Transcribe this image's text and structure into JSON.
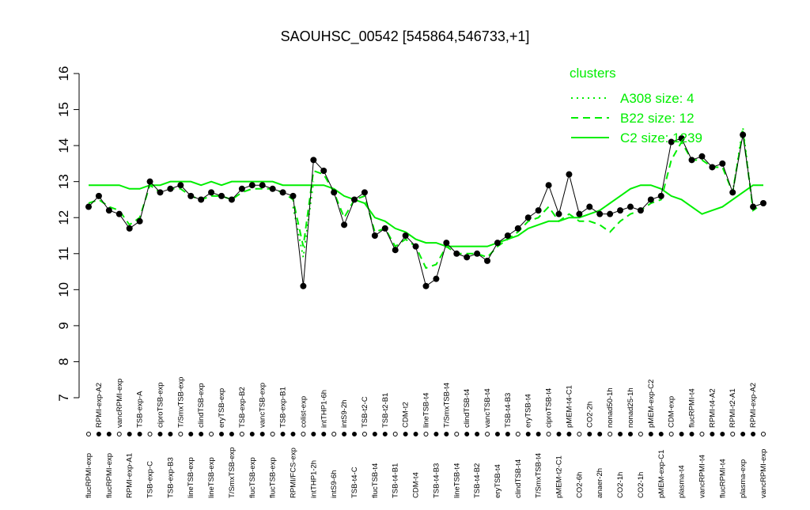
{
  "chart_data": {
    "type": "line",
    "title": "SAOUHSC_00542 [545864,546733,+1]",
    "categories": [
      "flucRPMI-exp",
      "RPMI-exp-A2",
      "flucRPMI-exp",
      "vancRPMI-exp",
      "RPMI-exp-A1",
      "TSB-exp-A",
      "TSB-exp-C",
      "ciproTSB-exp",
      "TSB-exp-B3",
      "T/SmxTSB-exp",
      "lineTSB-exp",
      "clindTSB-exp",
      "lineTSB-exp",
      "eryTSB-exp",
      "T/SmxTSB-exp",
      "TSB-exp-B2",
      "flucTSB-exp",
      "vancTSB-exp",
      "flucTSB-exp",
      "TSB-exp-B1",
      "RPMI/FCS-exp",
      "colist-exp",
      "intTHP1-2h",
      "intTHP1-6h",
      "intS9-6h",
      "intS9-2h",
      "TSB-t4-C",
      "TSB-t2-C",
      "flucTSB-t4",
      "TSB-t2-B1",
      "TSB-t4-B1",
      "CDM-t2",
      "CDM-t4",
      "lineTSB-t4",
      "TSB-t4-B3",
      "T/SmxTSB-t4",
      "lineTSB-t4",
      "clindTSB-t4",
      "TSB-t4-B2",
      "vancTSB-t4",
      "eryTSB-t4",
      "TSB-t4-B3",
      "clindTSB-t4",
      "eryTSB-t4",
      "T/SmxTSB-t4",
      "ciproTSB-t4",
      "pMEM-t2-C1",
      "pMEM-t4-C1",
      "CO2-6h",
      "CO2-2h",
      "anaer-2h",
      "nonad50-1h",
      "CO2-1h",
      "nonad25-1h",
      "CO2-1h",
      "pMEM-exp-C2",
      "pMEM-exp-C1",
      "CDM-exp",
      "plasma-t4",
      "flucRPMI-t4",
      "vancRPMI-t4",
      "RPMI-t4-A2",
      "flucRPMI-t4",
      "RPMI-t2-A1",
      "plasma-exp",
      "RPMI-exp-A2",
      "vancRPMI-exp"
    ],
    "values": [
      12.3,
      12.6,
      12.2,
      12.1,
      11.7,
      11.9,
      13.0,
      12.7,
      12.8,
      12.9,
      12.6,
      12.5,
      12.7,
      12.6,
      12.5,
      12.8,
      12.9,
      12.9,
      12.8,
      12.7,
      12.6,
      10.1,
      13.6,
      13.3,
      12.7,
      11.8,
      12.5,
      12.7,
      11.5,
      11.7,
      11.1,
      11.5,
      11.2,
      10.1,
      10.3,
      11.3,
      11.0,
      10.9,
      11.0,
      10.8,
      11.3,
      11.5,
      11.7,
      12.0,
      12.2,
      12.9,
      12.1,
      13.2,
      12.1,
      12.3,
      12.1,
      12.1,
      12.2,
      12.3,
      12.2,
      12.5,
      12.6,
      14.1,
      14.2,
      13.6,
      13.7,
      13.4,
      13.5,
      12.7,
      14.3,
      12.3,
      12.4
    ],
    "series": [
      {
        "name": "A308 size: 4",
        "color": "#00ee00",
        "style": "dotted",
        "values": [
          null,
          null,
          null,
          null,
          null,
          null,
          null,
          null,
          null,
          null,
          null,
          null,
          null,
          null,
          null,
          null,
          null,
          null,
          null,
          null,
          12.3,
          10.9,
          13.0,
          null,
          null,
          null,
          null,
          null,
          null,
          null,
          null,
          null,
          null,
          null,
          null,
          null,
          null,
          null,
          null,
          null,
          null,
          null,
          null,
          null,
          null,
          null,
          null,
          null,
          null,
          null,
          null,
          null,
          null,
          null,
          null,
          null,
          null,
          null,
          null,
          null,
          null,
          null,
          null,
          12.7,
          14.5,
          12.2,
          null
        ]
      },
      {
        "name": "B22 size: 12",
        "color": "#00ee00",
        "style": "dashed",
        "values": [
          12.4,
          12.5,
          12.3,
          12.2,
          11.8,
          12.0,
          12.9,
          12.7,
          12.8,
          12.8,
          12.6,
          12.5,
          12.6,
          12.6,
          12.5,
          12.7,
          12.8,
          12.8,
          12.8,
          12.7,
          12.5,
          11.2,
          13.3,
          13.2,
          12.7,
          12.0,
          12.5,
          12.6,
          11.6,
          11.7,
          11.2,
          11.4,
          11.2,
          10.6,
          10.7,
          11.2,
          11.0,
          11.0,
          11.0,
          10.9,
          11.2,
          11.4,
          11.6,
          11.9,
          12.0,
          12.3,
          11.9,
          12.1,
          11.9,
          11.9,
          11.8,
          11.6,
          11.9,
          12.1,
          12.2,
          12.4,
          12.5,
          13.6,
          14.1,
          13.6,
          13.6,
          13.4,
          13.4,
          12.7,
          14.4,
          12.2,
          12.4
        ]
      },
      {
        "name": "C2 size: 1239",
        "color": "#00ee00",
        "style": "solid",
        "values": [
          12.9,
          12.9,
          12.9,
          12.9,
          12.8,
          12.8,
          12.9,
          12.9,
          13.0,
          13.0,
          13.0,
          12.9,
          13.0,
          12.9,
          13.0,
          13.0,
          13.0,
          13.0,
          13.0,
          12.9,
          12.9,
          12.9,
          12.9,
          12.9,
          12.8,
          12.6,
          12.5,
          12.4,
          12.0,
          11.9,
          11.7,
          11.6,
          11.4,
          11.3,
          11.3,
          11.2,
          11.2,
          11.2,
          11.2,
          11.2,
          11.3,
          11.4,
          11.5,
          11.7,
          11.8,
          11.9,
          11.9,
          12.0,
          12.0,
          12.1,
          12.2,
          12.4,
          12.6,
          12.8,
          12.9,
          12.9,
          12.8,
          12.6,
          12.5,
          12.3,
          12.1,
          12.2,
          12.3,
          12.5,
          12.7,
          12.9,
          12.9
        ]
      }
    ],
    "legend_title": "clusters",
    "ylim": [
      7,
      16
    ],
    "yticks": [
      7,
      8,
      9,
      10,
      11,
      12,
      13,
      14,
      15,
      16
    ]
  }
}
